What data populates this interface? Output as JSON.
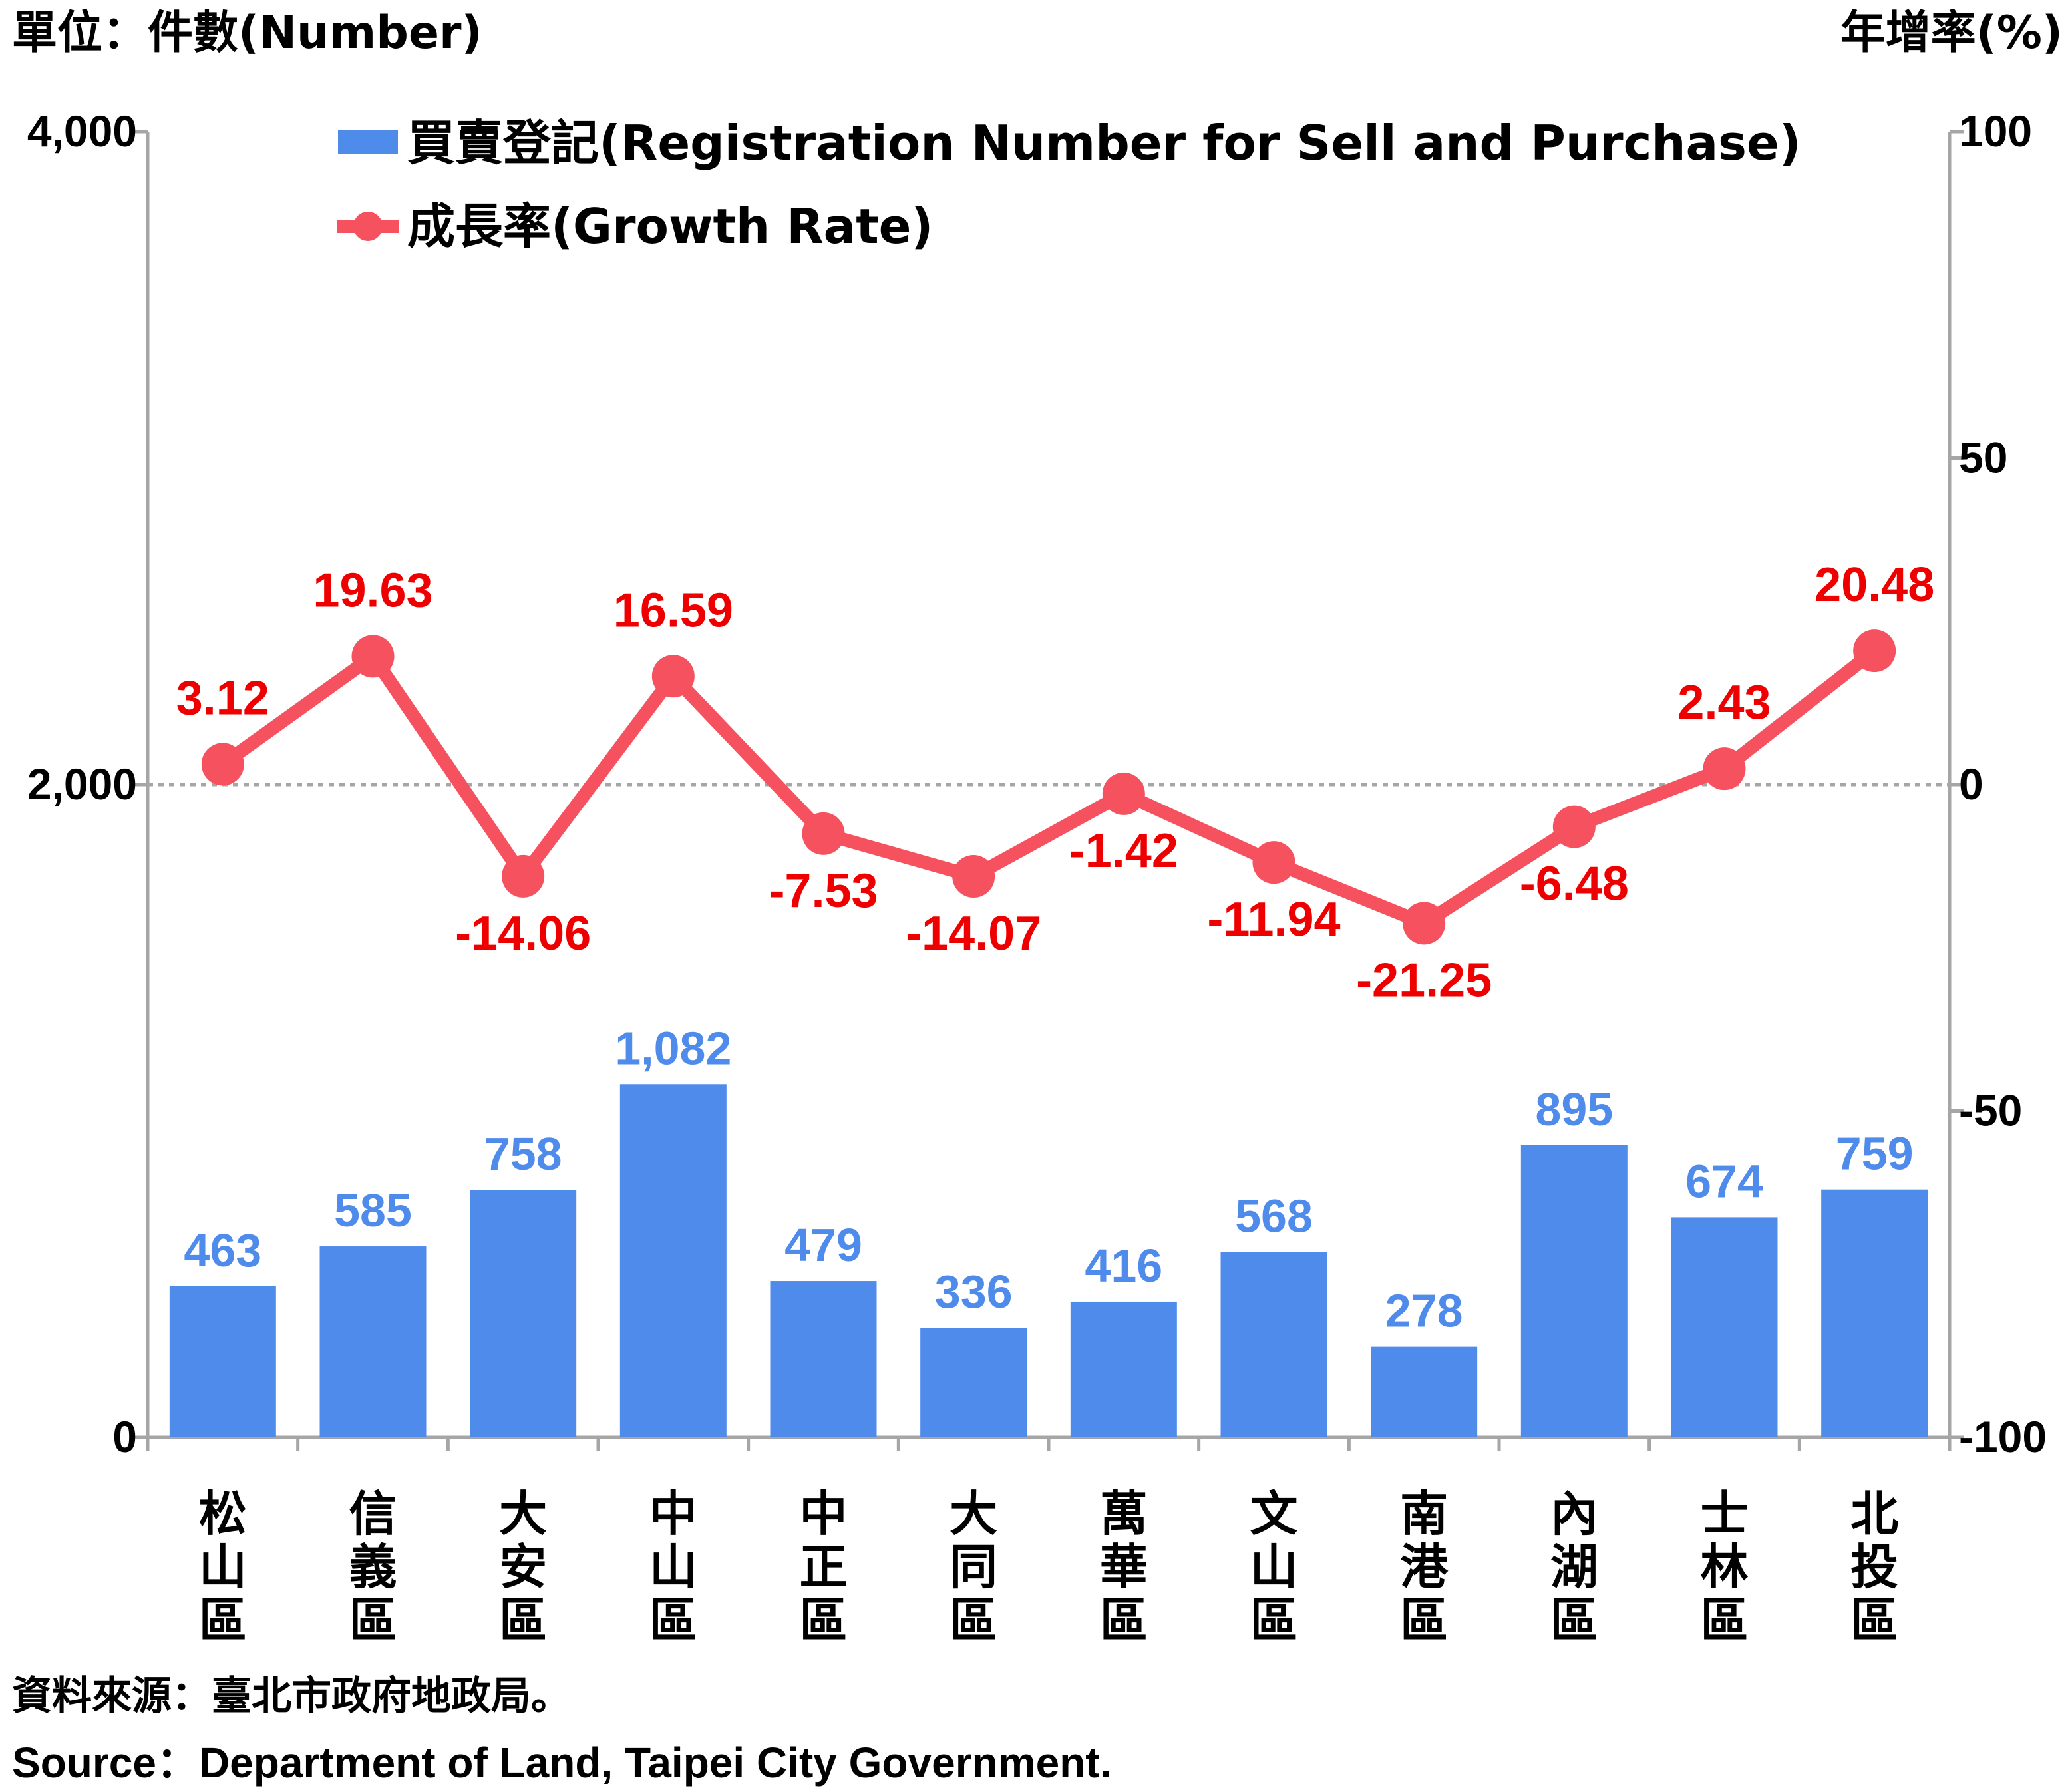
{
  "chart_data": {
    "type": "bar+line",
    "left_axis_label": "單位：件數(Number)",
    "right_axis_label": "年增率(%)",
    "left_ticks": [
      "0",
      "2,000",
      "4,000"
    ],
    "left_ylim": [
      0,
      4000
    ],
    "right_ticks": [
      "-100",
      "-50",
      "0",
      "50",
      "100"
    ],
    "right_ylim": [
      -100,
      100
    ],
    "categories": [
      "松山區",
      "信義區",
      "大安區",
      "中山區",
      "中正區",
      "大同區",
      "萬華區",
      "文山區",
      "南港區",
      "內湖區",
      "士林區",
      "北投區"
    ],
    "series": [
      {
        "name": "買賣登記(Registration Number for Sell and Purchase)",
        "kind": "bar",
        "axis": "left",
        "color": "#4f8beb",
        "values": [
          463,
          585,
          758,
          1082,
          479,
          336,
          416,
          568,
          278,
          895,
          674,
          759
        ],
        "labels": [
          "463",
          "585",
          "758",
          "1,082",
          "479",
          "336",
          "416",
          "568",
          "278",
          "895",
          "674",
          "759"
        ]
      },
      {
        "name": "成長率(Growth Rate)",
        "kind": "line",
        "axis": "right",
        "color": "#f5515f",
        "label_color": "#ee0000",
        "values": [
          3.12,
          19.63,
          -14.06,
          16.59,
          -7.53,
          -14.07,
          -1.42,
          -11.94,
          -21.25,
          -6.48,
          2.43,
          20.48
        ],
        "labels": [
          "3.12",
          "19.63",
          "-14.06",
          "16.59",
          "-7.53",
          "-14.07",
          "-1.42",
          "-11.94",
          "-21.25",
          "-6.48",
          "2.43",
          "20.48"
        ]
      }
    ],
    "zero_reference_line": "dotted"
  },
  "source": {
    "zh": "資料來源：臺北市政府地政局。",
    "en": "Source：Department of Land, Taipei City Government."
  }
}
